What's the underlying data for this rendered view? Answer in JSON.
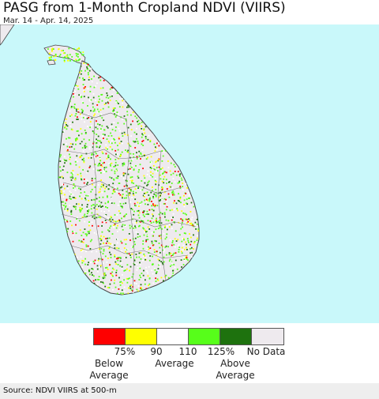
{
  "header": {
    "title": "PASG from 1-Month Cropland NDVI (VIIRS)",
    "date_range": "Mar. 14 - Apr. 14, 2025"
  },
  "legend": {
    "colors": [
      "#fe0000",
      "#ffff00",
      "#ffffff",
      "#57fe1a",
      "#1e720e",
      "#eeeaee"
    ],
    "ticks": [
      "75%",
      "90",
      "110",
      "125%",
      "No Data"
    ],
    "ranges": {
      "below": "Below\nAverage",
      "average": "Average",
      "above": "Above\nAverage"
    }
  },
  "map": {
    "ocean_color": "#c9f8fa",
    "land_color": "#eeeaee",
    "boundary_color": "#555555"
  },
  "footer": {
    "source": "Source: NDVI VIIRS at 500-m"
  }
}
